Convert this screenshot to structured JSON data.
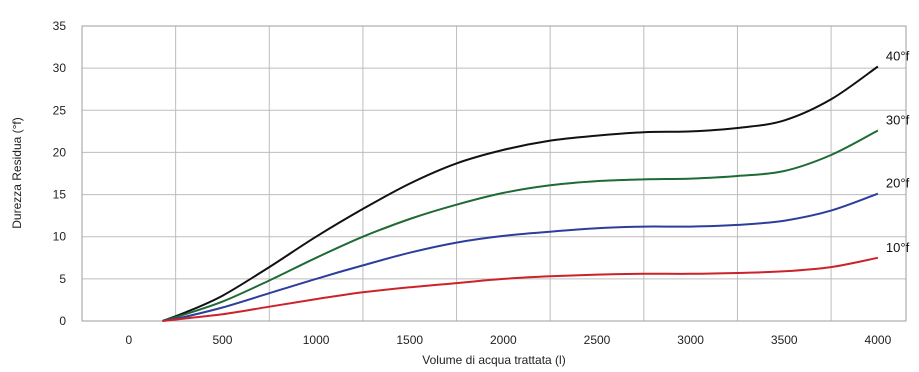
{
  "chart_data": {
    "type": "line",
    "title": "",
    "xlabel": "Volume di acqua trattata (l)",
    "ylabel": "Durezza Residua (°f)",
    "xlim": [
      -250,
      4150
    ],
    "ylim": [
      0,
      35
    ],
    "xticks": [
      0,
      500,
      1000,
      1500,
      2000,
      2500,
      3000,
      3500,
      4000
    ],
    "yticks": [
      0,
      5,
      10,
      15,
      20,
      25,
      30,
      35
    ],
    "grid": true,
    "legend": "inline-right",
    "series": [
      {
        "name": "40°f",
        "color": "#111111",
        "x": [
          180,
          300,
          500,
          750,
          1000,
          1250,
          1500,
          1750,
          2000,
          2250,
          2500,
          2750,
          3000,
          3250,
          3500,
          3750,
          4000
        ],
        "y": [
          0,
          1,
          3,
          6.4,
          10,
          13.3,
          16.3,
          18.7,
          20.3,
          21.4,
          22,
          22.4,
          22.5,
          22.9,
          23.8,
          26.3,
          30.2
        ]
      },
      {
        "name": "30°f",
        "color": "#1e6b35",
        "x": [
          180,
          300,
          500,
          750,
          1000,
          1250,
          1500,
          1750,
          2000,
          2250,
          2500,
          2750,
          3000,
          3250,
          3500,
          3750,
          4000
        ],
        "y": [
          0,
          0.8,
          2.3,
          4.8,
          7.5,
          10,
          12.1,
          13.8,
          15.2,
          16.1,
          16.6,
          16.8,
          16.9,
          17.2,
          17.8,
          19.7,
          22.6
        ]
      },
      {
        "name": "20°f",
        "color": "#2c3e9c",
        "x": [
          180,
          300,
          500,
          750,
          1000,
          1250,
          1500,
          1750,
          2000,
          2250,
          2500,
          2750,
          3000,
          3250,
          3500,
          3750,
          4000
        ],
        "y": [
          0,
          0.5,
          1.6,
          3.3,
          5,
          6.6,
          8.1,
          9.3,
          10.1,
          10.6,
          11,
          11.2,
          11.2,
          11.4,
          11.9,
          13.1,
          15.1
        ]
      },
      {
        "name": "10°f",
        "color": "#cc2229",
        "x": [
          180,
          300,
          500,
          750,
          1000,
          1250,
          1500,
          1750,
          2000,
          2250,
          2500,
          2750,
          3000,
          3250,
          3500,
          3750,
          4000
        ],
        "y": [
          0,
          0.3,
          0.8,
          1.7,
          2.6,
          3.4,
          4,
          4.5,
          5,
          5.3,
          5.5,
          5.6,
          5.6,
          5.7,
          5.9,
          6.4,
          7.5
        ]
      }
    ]
  }
}
